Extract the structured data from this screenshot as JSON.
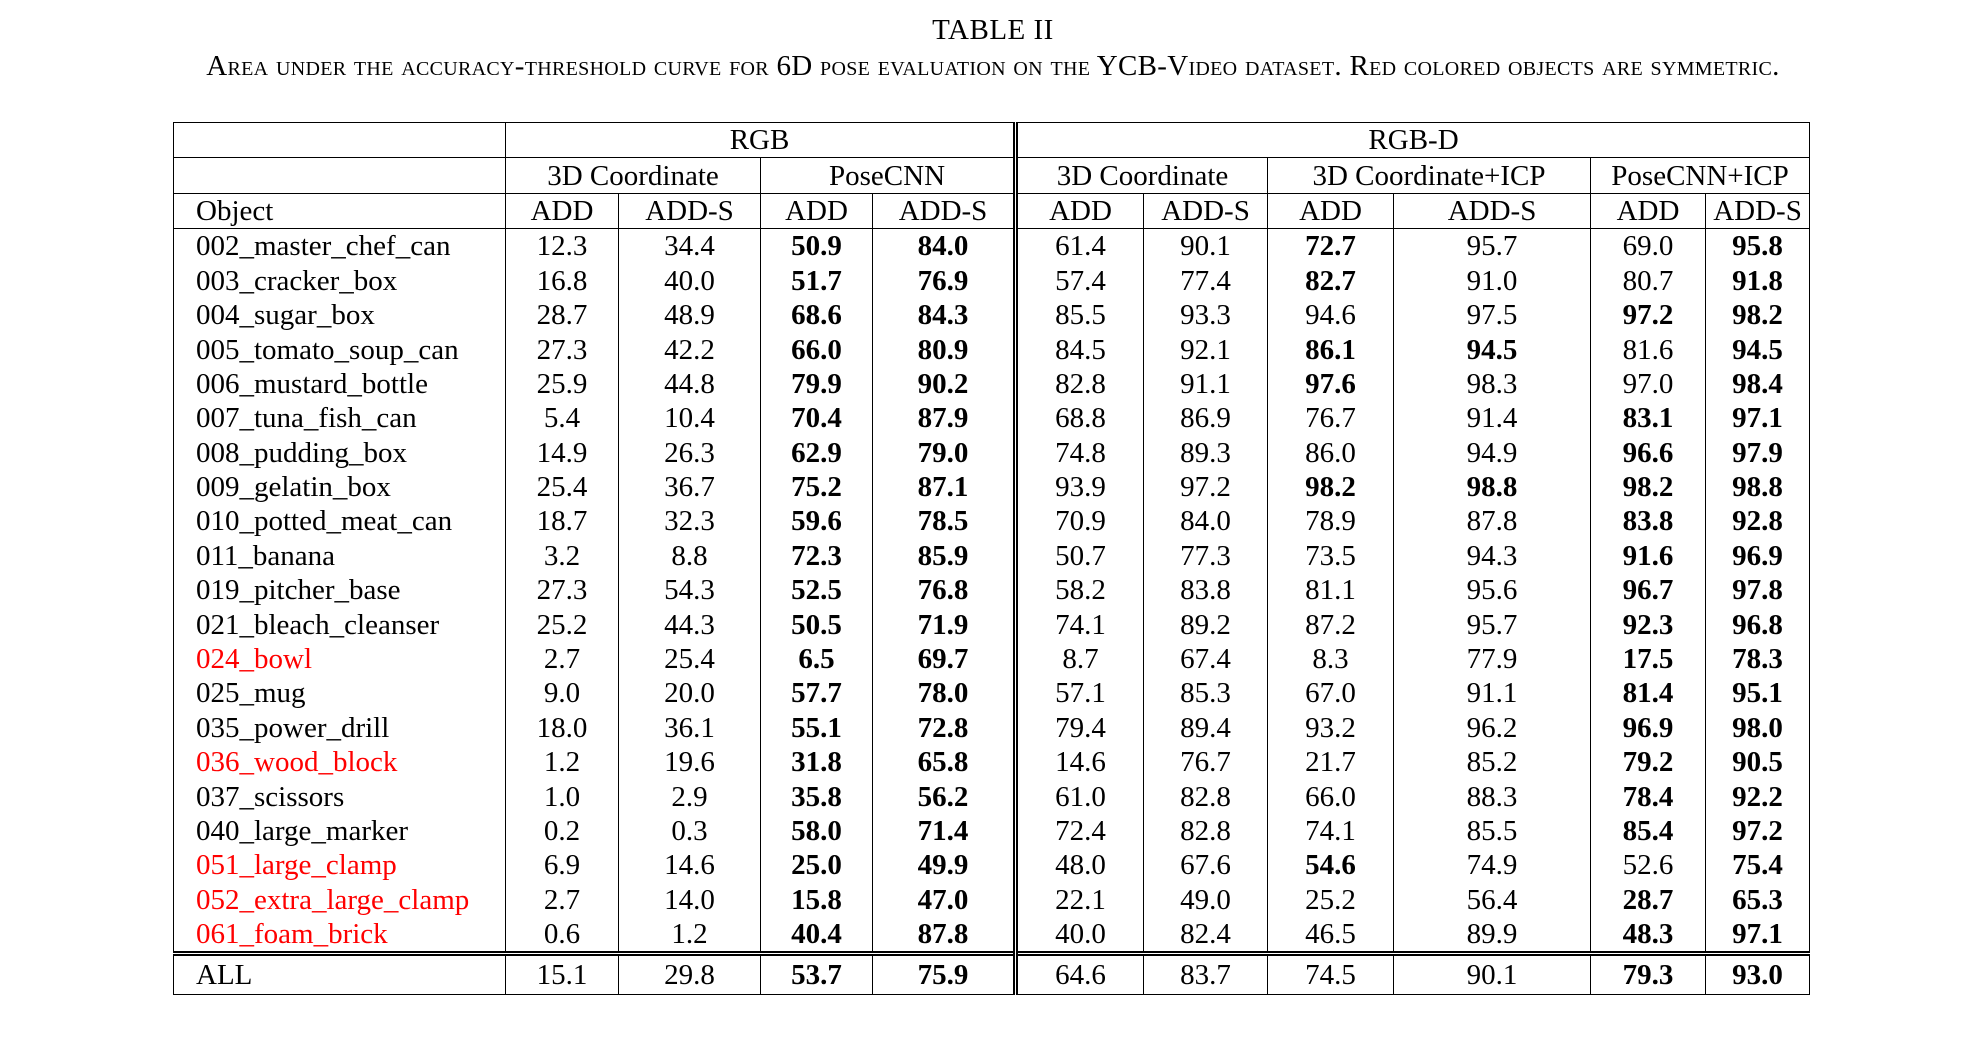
{
  "table_number": "TABLE II",
  "caption": "Area under the accuracy-threshold curve for 6D pose evaluation on the YCB-Video dataset. Red colored objects are symmetric.",
  "header": {
    "group_rgb": "RGB",
    "group_rgbd": "RGB-D",
    "methods": {
      "rgb_3d": "3D Coordinate",
      "rgb_posecnn": "PoseCNN",
      "rgbd_3d": "3D Coordinate",
      "rgbd_3d_icp": "3D Coordinate+ICP",
      "rgbd_posecnn_icp": "PoseCNN+ICP"
    },
    "object_col": "Object",
    "add": "ADD",
    "add_s": "ADD-S"
  },
  "symmetric_color": "#ff0000",
  "rows": [
    {
      "object": "002_master_chef_can",
      "symmetric": false,
      "values": [
        "12.3",
        "34.4",
        "50.9",
        "84.0",
        "61.4",
        "90.1",
        "72.7",
        "95.7",
        "69.0",
        "95.8"
      ],
      "bold": [
        2,
        3,
        6,
        9
      ]
    },
    {
      "object": "003_cracker_box",
      "symmetric": false,
      "values": [
        "16.8",
        "40.0",
        "51.7",
        "76.9",
        "57.4",
        "77.4",
        "82.7",
        "91.0",
        "80.7",
        "91.8"
      ],
      "bold": [
        2,
        3,
        6,
        9
      ]
    },
    {
      "object": "004_sugar_box",
      "symmetric": false,
      "values": [
        "28.7",
        "48.9",
        "68.6",
        "84.3",
        "85.5",
        "93.3",
        "94.6",
        "97.5",
        "97.2",
        "98.2"
      ],
      "bold": [
        2,
        3,
        8,
        9
      ]
    },
    {
      "object": "005_tomato_soup_can",
      "symmetric": false,
      "values": [
        "27.3",
        "42.2",
        "66.0",
        "80.9",
        "84.5",
        "92.1",
        "86.1",
        "94.5",
        "81.6",
        "94.5"
      ],
      "bold": [
        2,
        3,
        6,
        7,
        9
      ]
    },
    {
      "object": "006_mustard_bottle",
      "symmetric": false,
      "values": [
        "25.9",
        "44.8",
        "79.9",
        "90.2",
        "82.8",
        "91.1",
        "97.6",
        "98.3",
        "97.0",
        "98.4"
      ],
      "bold": [
        2,
        3,
        6,
        9
      ]
    },
    {
      "object": "007_tuna_fish_can",
      "symmetric": false,
      "values": [
        "5.4",
        "10.4",
        "70.4",
        "87.9",
        "68.8",
        "86.9",
        "76.7",
        "91.4",
        "83.1",
        "97.1"
      ],
      "bold": [
        2,
        3,
        8,
        9
      ]
    },
    {
      "object": "008_pudding_box",
      "symmetric": false,
      "values": [
        "14.9",
        "26.3",
        "62.9",
        "79.0",
        "74.8",
        "89.3",
        "86.0",
        "94.9",
        "96.6",
        "97.9"
      ],
      "bold": [
        2,
        3,
        8,
        9
      ]
    },
    {
      "object": "009_gelatin_box",
      "symmetric": false,
      "values": [
        "25.4",
        "36.7",
        "75.2",
        "87.1",
        "93.9",
        "97.2",
        "98.2",
        "98.8",
        "98.2",
        "98.8"
      ],
      "bold": [
        2,
        3,
        6,
        7,
        8,
        9
      ]
    },
    {
      "object": "010_potted_meat_can",
      "symmetric": false,
      "values": [
        "18.7",
        "32.3",
        "59.6",
        "78.5",
        "70.9",
        "84.0",
        "78.9",
        "87.8",
        "83.8",
        "92.8"
      ],
      "bold": [
        2,
        3,
        8,
        9
      ]
    },
    {
      "object": "011_banana",
      "symmetric": false,
      "values": [
        "3.2",
        "8.8",
        "72.3",
        "85.9",
        "50.7",
        "77.3",
        "73.5",
        "94.3",
        "91.6",
        "96.9"
      ],
      "bold": [
        2,
        3,
        8,
        9
      ]
    },
    {
      "object": "019_pitcher_base",
      "symmetric": false,
      "values": [
        "27.3",
        "54.3",
        "52.5",
        "76.8",
        "58.2",
        "83.8",
        "81.1",
        "95.6",
        "96.7",
        "97.8"
      ],
      "bold": [
        2,
        3,
        8,
        9
      ]
    },
    {
      "object": "021_bleach_cleanser",
      "symmetric": false,
      "values": [
        "25.2",
        "44.3",
        "50.5",
        "71.9",
        "74.1",
        "89.2",
        "87.2",
        "95.7",
        "92.3",
        "96.8"
      ],
      "bold": [
        2,
        3,
        8,
        9
      ]
    },
    {
      "object": "024_bowl",
      "symmetric": true,
      "values": [
        "2.7",
        "25.4",
        "6.5",
        "69.7",
        "8.7",
        "67.4",
        "8.3",
        "77.9",
        "17.5",
        "78.3"
      ],
      "bold": [
        2,
        3,
        8,
        9
      ]
    },
    {
      "object": "025_mug",
      "symmetric": false,
      "values": [
        "9.0",
        "20.0",
        "57.7",
        "78.0",
        "57.1",
        "85.3",
        "67.0",
        "91.1",
        "81.4",
        "95.1"
      ],
      "bold": [
        2,
        3,
        8,
        9
      ]
    },
    {
      "object": "035_power_drill",
      "symmetric": false,
      "values": [
        "18.0",
        "36.1",
        "55.1",
        "72.8",
        "79.4",
        "89.4",
        "93.2",
        "96.2",
        "96.9",
        "98.0"
      ],
      "bold": [
        2,
        3,
        8,
        9
      ]
    },
    {
      "object": "036_wood_block",
      "symmetric": true,
      "values": [
        "1.2",
        "19.6",
        "31.8",
        "65.8",
        "14.6",
        "76.7",
        "21.7",
        "85.2",
        "79.2",
        "90.5"
      ],
      "bold": [
        2,
        3,
        8,
        9
      ]
    },
    {
      "object": "037_scissors",
      "symmetric": false,
      "values": [
        "1.0",
        "2.9",
        "35.8",
        "56.2",
        "61.0",
        "82.8",
        "66.0",
        "88.3",
        "78.4",
        "92.2"
      ],
      "bold": [
        2,
        3,
        8,
        9
      ]
    },
    {
      "object": "040_large_marker",
      "symmetric": false,
      "values": [
        "0.2",
        "0.3",
        "58.0",
        "71.4",
        "72.4",
        "82.8",
        "74.1",
        "85.5",
        "85.4",
        "97.2"
      ],
      "bold": [
        2,
        3,
        8,
        9
      ]
    },
    {
      "object": "051_large_clamp",
      "symmetric": true,
      "values": [
        "6.9",
        "14.6",
        "25.0",
        "49.9",
        "48.0",
        "67.6",
        "54.6",
        "74.9",
        "52.6",
        "75.4"
      ],
      "bold": [
        2,
        3,
        6,
        9
      ]
    },
    {
      "object": "052_extra_large_clamp",
      "symmetric": true,
      "values": [
        "2.7",
        "14.0",
        "15.8",
        "47.0",
        "22.1",
        "49.0",
        "25.2",
        "56.4",
        "28.7",
        "65.3"
      ],
      "bold": [
        2,
        3,
        8,
        9
      ]
    },
    {
      "object": "061_foam_brick",
      "symmetric": true,
      "values": [
        "0.6",
        "1.2",
        "40.4",
        "87.8",
        "40.0",
        "82.4",
        "46.5",
        "89.9",
        "48.3",
        "97.1"
      ],
      "bold": [
        2,
        3,
        8,
        9
      ]
    }
  ],
  "total": {
    "object": "ALL",
    "values": [
      "15.1",
      "29.8",
      "53.7",
      "75.9",
      "64.6",
      "83.7",
      "74.5",
      "90.1",
      "79.3",
      "93.0"
    ],
    "bold": [
      2,
      3,
      8,
      9
    ]
  }
}
